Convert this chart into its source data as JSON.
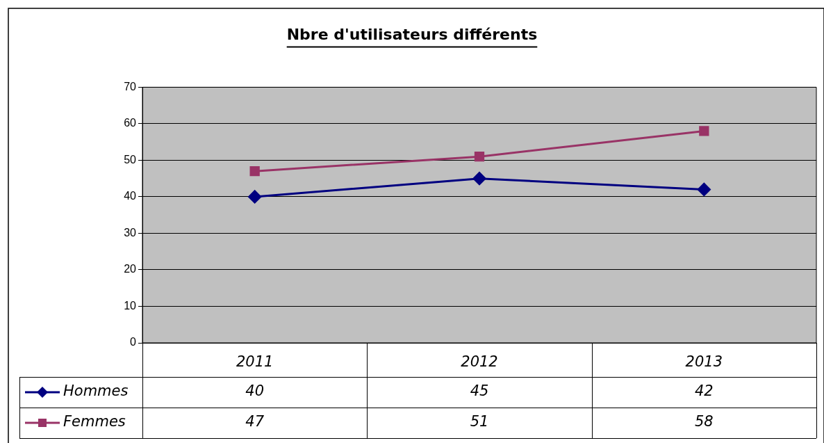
{
  "chart_data": {
    "type": "line",
    "title": "Nbre d'utilisateurs différents",
    "categories": [
      "2011",
      "2012",
      "2013"
    ],
    "series": [
      {
        "name": "Hommes",
        "color": "#000080",
        "values": [
          40,
          45,
          42
        ],
        "marker": "diamond"
      },
      {
        "name": "Femmes",
        "color": "#993366",
        "values": [
          47,
          51,
          58
        ],
        "marker": "square"
      }
    ],
    "ylim": [
      0,
      70
    ],
    "yticks": [
      0,
      10,
      20,
      30,
      40,
      50,
      60,
      70
    ],
    "grid": "y",
    "legend": "bottom left",
    "data_labels": true
  }
}
